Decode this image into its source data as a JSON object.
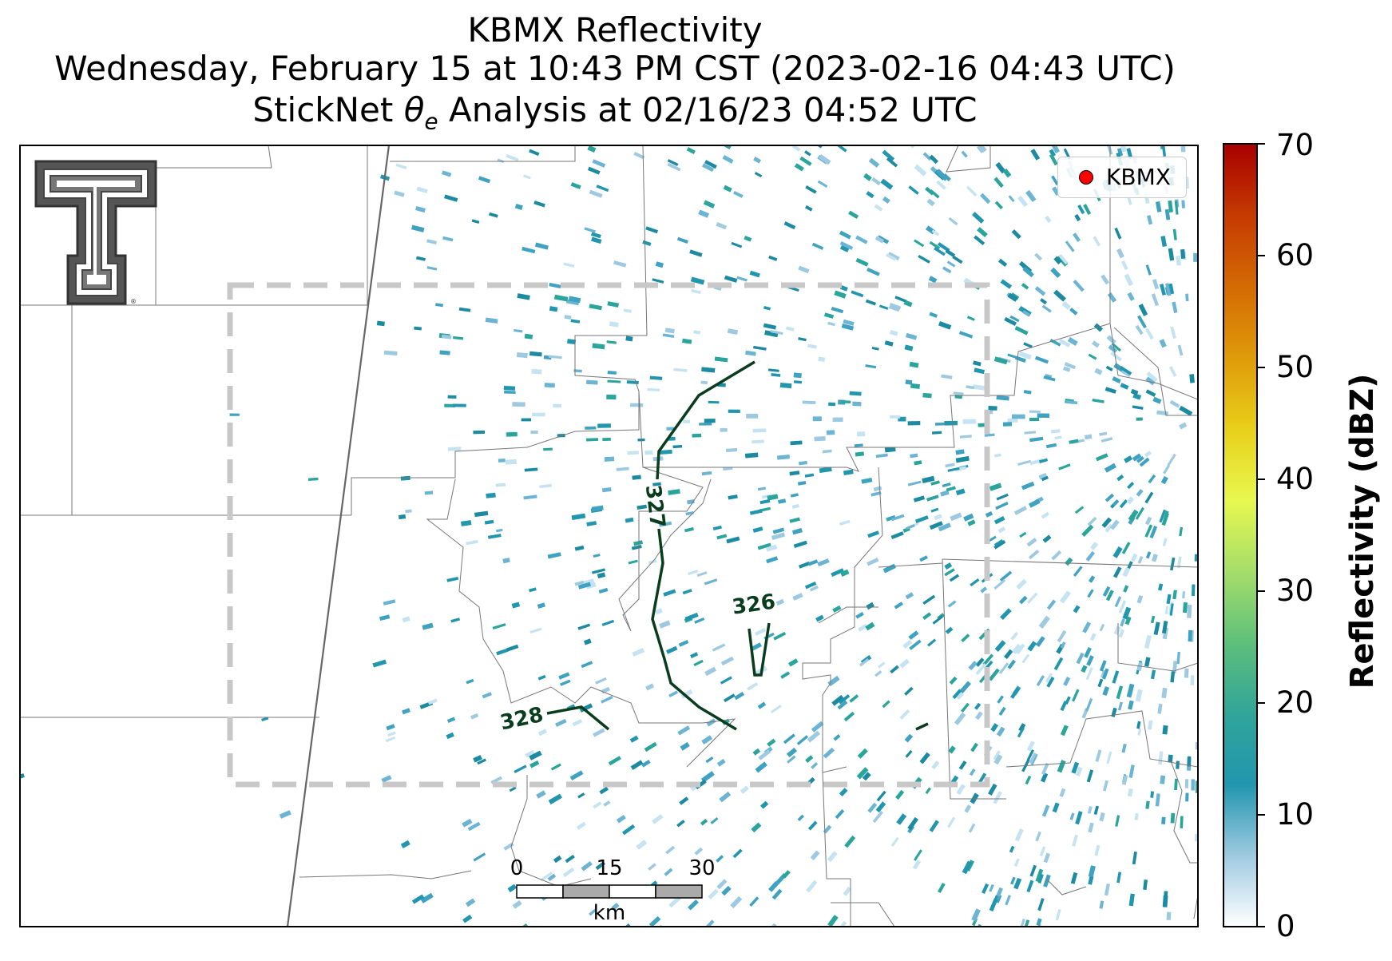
{
  "title": {
    "line1": "KBMX Reflectivity",
    "line2": "Wednesday, February 15 at 10:43 PM CST (2023-02-16 04:43 UTC)",
    "line3_prefix": "StickNet ",
    "line3_symbol": "θ",
    "line3_sub": "e",
    "line3_suffix": " Analysis at 02/16/23 04:52 UTC"
  },
  "legend": {
    "label": "KBMX",
    "marker_color": "#ff0000"
  },
  "colorbar": {
    "label": "Reflectivity (dBZ)",
    "ticks": [
      "0",
      "10",
      "20",
      "30",
      "40",
      "50",
      "60",
      "70"
    ],
    "range": [
      0,
      70
    ],
    "colors": [
      "#ffffff",
      "#9ecae1",
      "#2196ae",
      "#31a59a",
      "#5fc07a",
      "#a6de6a",
      "#e8f84e",
      "#e8cf1a",
      "#df9a09",
      "#d46a04",
      "#c53a02",
      "#a80000"
    ]
  },
  "contours": {
    "color": "#0a3d1e",
    "labels": [
      "327",
      "326",
      "328"
    ]
  },
  "scale_bar": {
    "ticks": [
      "0",
      "15",
      "30"
    ],
    "unit": "km"
  },
  "logo": {
    "name": "Texas Tech double-T logo"
  },
  "map": {
    "boundary_color": "#777777",
    "domain_box_color": "#c8c8c8"
  }
}
